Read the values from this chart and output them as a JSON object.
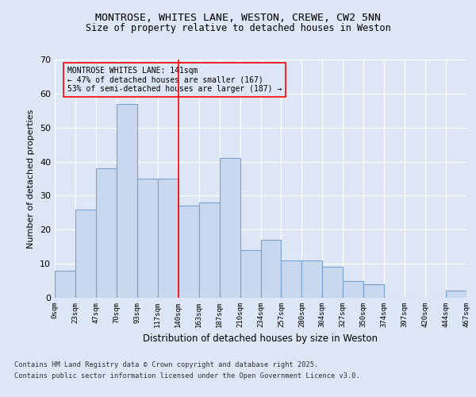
{
  "title1": "MONTROSE, WHITES LANE, WESTON, CREWE, CW2 5NN",
  "title2": "Size of property relative to detached houses in Weston",
  "xlabel": "Distribution of detached houses by size in Weston",
  "ylabel": "Number of detached properties",
  "bar_color": "#c8d8ee",
  "bar_edge_color": "#7aa0cc",
  "background_color": "#dce6f5",
  "tick_labels": [
    "0sqm",
    "23sqm",
    "47sqm",
    "70sqm",
    "93sqm",
    "117sqm",
    "140sqm",
    "163sqm",
    "187sqm",
    "210sqm",
    "234sqm",
    "257sqm",
    "280sqm",
    "304sqm",
    "327sqm",
    "350sqm",
    "374sqm",
    "397sqm",
    "420sqm",
    "444sqm",
    "467sqm"
  ],
  "bar_heights": [
    8,
    26,
    38,
    57,
    35,
    35,
    27,
    28,
    41,
    14,
    17,
    11,
    11,
    9,
    5,
    4,
    0,
    0,
    0,
    2
  ],
  "n_bars": 20,
  "ylim": [
    0,
    70
  ],
  "yticks": [
    0,
    10,
    20,
    30,
    40,
    50,
    60,
    70
  ],
  "vline_bar_index": 6,
  "annotation_title": "MONTROSE WHITES LANE: 141sqm",
  "annotation_line1": "← 47% of detached houses are smaller (167)",
  "annotation_line2": "53% of semi-detached houses are larger (187) →",
  "footer1": "Contains HM Land Registry data © Crown copyright and database right 2025.",
  "footer2": "Contains public sector information licensed under the Open Government Licence v3.0."
}
